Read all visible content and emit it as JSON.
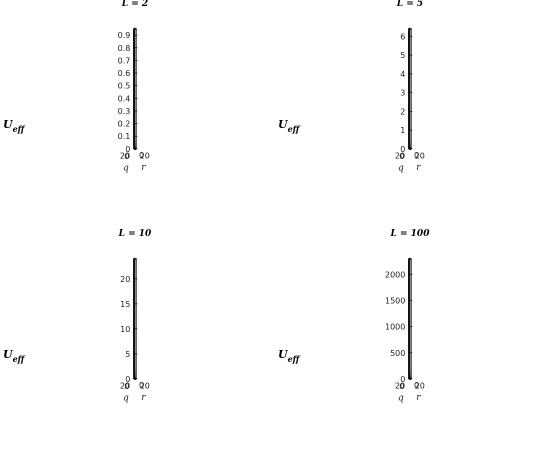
{
  "chart_data": [
    {
      "type": "surface",
      "title": "L = 2",
      "zlabel": "U_eff",
      "zlabel_base": "U",
      "zlabel_sub": "eff",
      "xlabel": "q",
      "ylabel": "r",
      "x_ticks": [
        "0",
        "20"
      ],
      "y_ticks": [
        "0",
        "20"
      ],
      "z_ticks": [
        "0",
        "0.1",
        "0.2",
        "0.3",
        "0.4",
        "0.5",
        "0.6",
        "0.7",
        "0.8",
        "0.9"
      ],
      "zlim": [
        0,
        0.95
      ]
    },
    {
      "type": "surface",
      "title": "L = 5",
      "zlabel": "U_eff",
      "zlabel_base": "U",
      "zlabel_sub": "eff",
      "xlabel": "q",
      "ylabel": "r",
      "x_ticks": [
        "0",
        "20"
      ],
      "y_ticks": [
        "0",
        "20"
      ],
      "z_ticks": [
        "0",
        "1",
        "2",
        "3",
        "4",
        "5",
        "6"
      ],
      "zlim": [
        0,
        6.4
      ]
    },
    {
      "type": "surface",
      "title": "L = 10",
      "zlabel": "U_eff",
      "zlabel_base": "U",
      "zlabel_sub": "eff",
      "xlabel": "q",
      "ylabel": "r",
      "x_ticks": [
        "0",
        "20"
      ],
      "y_ticks": [
        "0",
        "20"
      ],
      "z_ticks": [
        "0",
        "5",
        "10",
        "15",
        "20"
      ],
      "zlim": [
        0,
        24
      ]
    },
    {
      "type": "surface",
      "title": "L = 100",
      "zlabel": "U_eff",
      "zlabel_base": "U",
      "zlabel_sub": "eff",
      "xlabel": "q",
      "ylabel": "r",
      "x_ticks": [
        "0",
        "20"
      ],
      "y_ticks": [
        "0",
        "20"
      ],
      "z_ticks": [
        "0",
        "500",
        "1000",
        "1500",
        "2000"
      ],
      "zlim": [
        0,
        2300
      ]
    }
  ]
}
